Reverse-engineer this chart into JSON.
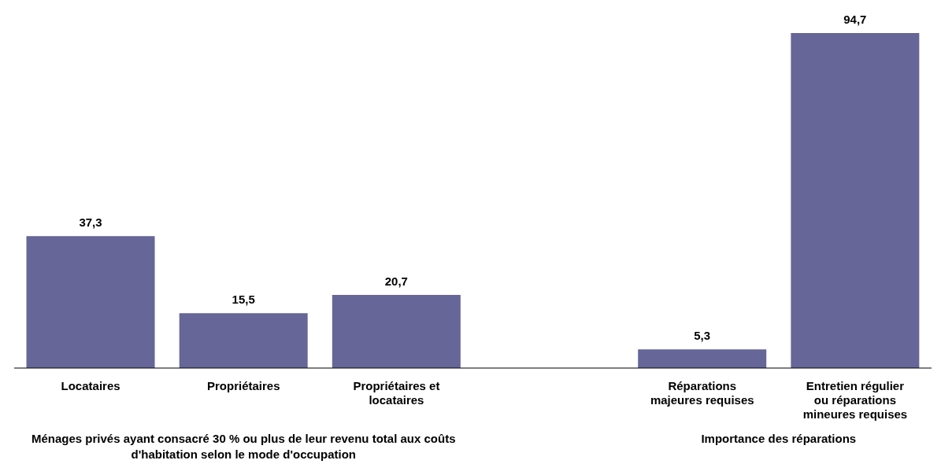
{
  "chart_data": {
    "type": "bar",
    "categories": [
      "Locataires",
      "Propriétaires",
      "Propriétaires et locataires",
      null,
      "Réparations majeures requises",
      "Entretien régulier ou réparations mineures requises"
    ],
    "values": [
      37.3,
      15.5,
      20.7,
      null,
      5.3,
      94.7
    ],
    "color": "#666699",
    "value_labels": [
      "37,3",
      "15,5",
      "20,7",
      null,
      "5,3",
      "94,7"
    ],
    "grid": false,
    "legend": false,
    "annotations": [
      "Ménages privés ayant consacré 30 % ou plus  de leur revenu total aux coûts d'habitation selon le mode d'occupation",
      "Importance des réparations"
    ]
  }
}
